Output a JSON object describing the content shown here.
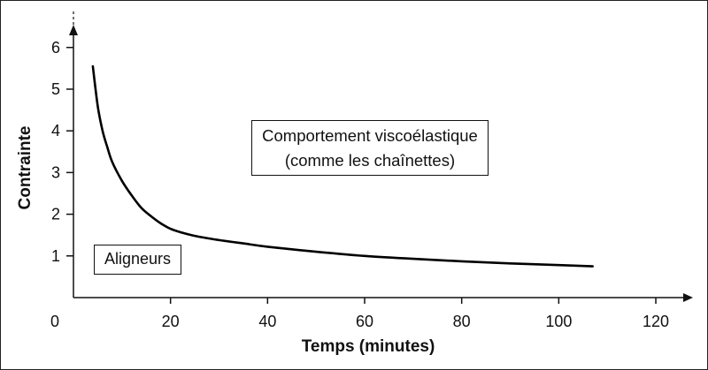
{
  "chart_data": {
    "type": "line",
    "title": "",
    "xlabel": "Temps (minutes)",
    "ylabel": "Contrainte",
    "xlim": [
      0,
      122
    ],
    "ylim": [
      0,
      6.8
    ],
    "x_ticks": [
      0,
      20,
      40,
      60,
      80,
      100,
      120
    ],
    "y_ticks": [
      1,
      2,
      3,
      4,
      5,
      6
    ],
    "grid": false,
    "series": [
      {
        "color": "#000000",
        "x": [
          4,
          5,
          6,
          7,
          8,
          10,
          12,
          14,
          16,
          18,
          20,
          22,
          25,
          30,
          35,
          40,
          50,
          60,
          70,
          80,
          90,
          100,
          107
        ],
        "y": [
          5.55,
          4.6,
          4.0,
          3.6,
          3.25,
          2.8,
          2.45,
          2.15,
          1.95,
          1.78,
          1.65,
          1.57,
          1.48,
          1.38,
          1.3,
          1.22,
          1.1,
          1.0,
          0.93,
          0.87,
          0.82,
          0.78,
          0.75
        ]
      }
    ],
    "annotations": [
      {
        "lines": [
          "Aligneurs"
        ]
      },
      {
        "lines": [
          "Comportement viscoélastique",
          "(comme les chaînettes)"
        ]
      }
    ]
  }
}
